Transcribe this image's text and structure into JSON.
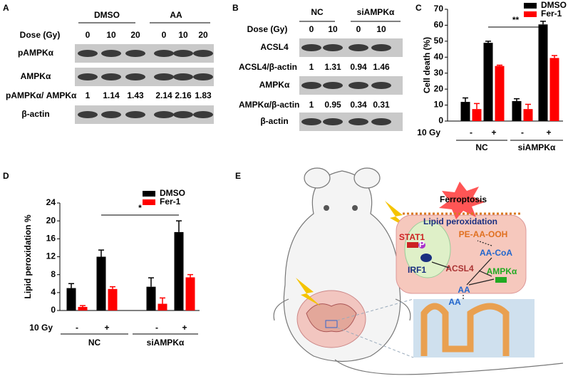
{
  "panel_labels": [
    "A",
    "B",
    "C",
    "D",
    "E"
  ],
  "blot_a": {
    "groups": [
      "DMSO",
      "AA"
    ],
    "dose_label": "Dose (Gy)",
    "doses": [
      "0",
      "10",
      "20",
      "0",
      "10",
      "20"
    ],
    "rows": [
      "pAMPKα",
      "AMPKα",
      "β-actin"
    ],
    "ratio_label": "pAMPKα/ AMPKα",
    "ratios": [
      1,
      1.14,
      1.43,
      2.14,
      2.16,
      1.83
    ]
  },
  "blot_b": {
    "groups": [
      "NC",
      "siAMPKα"
    ],
    "dose_label": "Dose (Gy)",
    "doses": [
      "0",
      "10",
      "0",
      "10"
    ],
    "rows": [
      "ACSL4",
      "AMPKα",
      "β-actin"
    ],
    "ratio_rows": [
      {
        "label": "ACSL4/β-actin",
        "values": [
          1,
          1.31,
          0.94,
          1.46
        ]
      },
      {
        "label": "AMPKα/β-actin",
        "values": [
          1,
          0.95,
          0.34,
          0.31
        ]
      }
    ]
  },
  "chart_data": [
    {
      "type": "bar",
      "y_label": "Cell death (%)",
      "row_label": "10 Gy",
      "categories": [
        "-",
        "+",
        "-",
        "+"
      ],
      "group_labels": [
        "NC",
        "siAMPKα"
      ],
      "annotation": "**",
      "series": [
        {
          "name": "DMSO",
          "color": "#000000",
          "values": [
            12,
            49,
            12.5,
            60.5
          ],
          "errors": [
            2.5,
            1,
            1.5,
            2
          ]
        },
        {
          "name": "Fer-1",
          "color": "#ff0000",
          "values": [
            7.5,
            34.5,
            7.5,
            39.5
          ],
          "errors": [
            3.5,
            0.5,
            3,
            1.5
          ]
        }
      ],
      "ylim": [
        0,
        70
      ],
      "yticks": [
        0,
        10,
        20,
        30,
        40,
        50,
        60,
        70
      ]
    },
    {
      "type": "bar",
      "y_label": "Lipid peroxidation %",
      "row_label": "10 Gy",
      "categories": [
        "-",
        "+",
        "-",
        "+"
      ],
      "group_labels": [
        "NC",
        "siAMPKα"
      ],
      "annotation": "*",
      "series": [
        {
          "name": "DMSO",
          "color": "#000000",
          "values": [
            5,
            12,
            5.3,
            17.5
          ],
          "errors": [
            1,
            1.5,
            2,
            2.5
          ]
        },
        {
          "name": "Fer-1",
          "color": "#ff0000",
          "values": [
            0.8,
            4.8,
            1.5,
            7.4
          ],
          "errors": [
            0.3,
            0.5,
            1.3,
            0.6
          ]
        }
      ],
      "ylim": [
        0,
        24
      ],
      "yticks": [
        0,
        4,
        8,
        12,
        16,
        20,
        24
      ]
    }
  ],
  "diagram_e": {
    "ferroptosis": "Ferroptosis",
    "lipid_peroxidation": "Lipid peroxidation",
    "pe_aa_ooh": "PE-AA-OOH",
    "stat1": "STAT1",
    "phospho": "P",
    "irf1": "IRF1",
    "acsl4": "ACSL4",
    "aa_coa": "AA-CoA",
    "aa_inner": "AA",
    "ampk": "AMPKα",
    "aa_outer": "AA"
  }
}
